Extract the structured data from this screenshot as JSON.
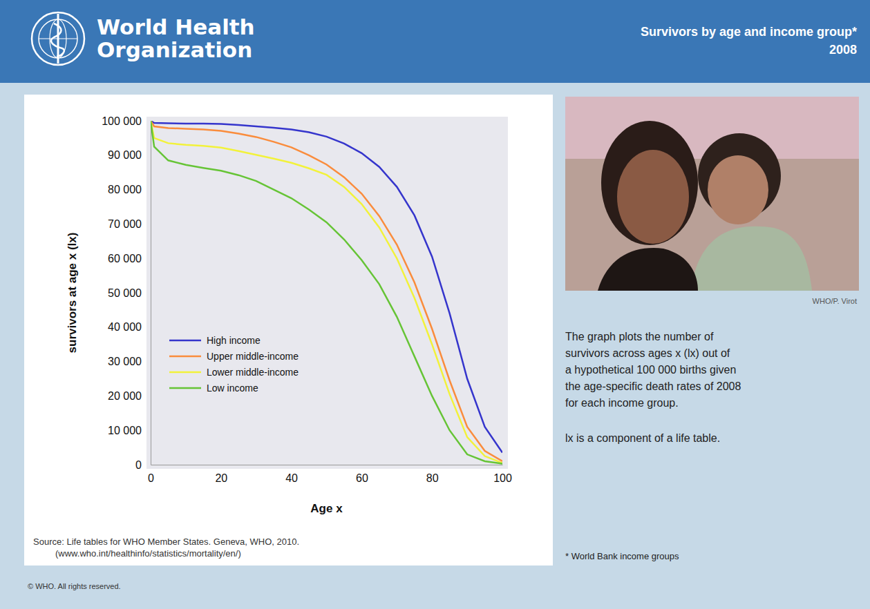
{
  "header": {
    "organization": [
      "World Health",
      "Organization"
    ],
    "title": "Survivors by age and income group*",
    "year": "2008"
  },
  "photo_credit": "WHO/P. Virot",
  "description": [
    "The graph plots the number of",
    "survivors across ages x (lx) out of",
    "a hypothetical 100 000 births given",
    "the age-specific death rates of 2008",
    "for each income group."
  ],
  "note": "lx is a component of a life table.",
  "footnote": "* World Bank income groups",
  "source": [
    "Source: Life tables for WHO Member States. Geneva, WHO, 2010.",
    "(www.who.int/healthinfo/statistics/mortality/en/)"
  ],
  "copyright": "© WHO. All rights reserved.",
  "chart_data": {
    "type": "line",
    "x_label": "Age x",
    "y_label": "survivors at age x (lx)",
    "x": [
      0,
      1,
      5,
      10,
      15,
      20,
      25,
      30,
      35,
      40,
      45,
      50,
      55,
      60,
      65,
      70,
      75,
      80,
      85,
      90,
      95,
      100
    ],
    "xlim": [
      0,
      100
    ],
    "xticks": [
      0,
      20,
      40,
      60,
      80,
      100
    ],
    "ylim": [
      0,
      100000
    ],
    "yticks": [
      0,
      {
        "value": 10000,
        "label": "10 000"
      },
      {
        "value": 20000,
        "label": "20 000"
      },
      {
        "value": 30000,
        "label": "30 000"
      },
      {
        "value": 40000,
        "label": "40 000"
      },
      {
        "value": 50000,
        "label": "50 000"
      },
      {
        "value": 60000,
        "label": "60 000"
      },
      {
        "value": 70000,
        "label": "70 000"
      },
      {
        "value": 80000,
        "label": "80 000"
      },
      {
        "value": 90000,
        "label": "90 000"
      },
      {
        "value": 100000,
        "label": "100 000"
      }
    ],
    "grid": false,
    "legend": "lower left",
    "series": [
      {
        "name": "High income",
        "color": "#3535cc",
        "values": [
          100000,
          99400,
          99300,
          99200,
          99200,
          99100,
          98800,
          98400,
          98000,
          97500,
          96700,
          95400,
          93400,
          90600,
          86600,
          80800,
          72500,
          60500,
          44000,
          25000,
          11000,
          3500
        ]
      },
      {
        "name": "Upper middle-income",
        "color": "#fa8c3c",
        "values": [
          100000,
          98400,
          97900,
          97700,
          97500,
          97100,
          96300,
          95300,
          93900,
          92300,
          90000,
          87300,
          83600,
          78800,
          72300,
          64000,
          53000,
          39500,
          24500,
          11000,
          4000,
          1000
        ]
      },
      {
        "name": "Lower middle-income",
        "color": "#f2f23a",
        "values": [
          100000,
          95000,
          93500,
          93000,
          92700,
          92200,
          91200,
          90100,
          89000,
          87800,
          86200,
          84300,
          80800,
          75800,
          69000,
          60000,
          48500,
          35000,
          20500,
          8000,
          2500,
          500
        ]
      },
      {
        "name": "Low income",
        "color": "#66c436",
        "values": [
          100000,
          92500,
          88500,
          87200,
          86300,
          85500,
          84200,
          82500,
          80000,
          77500,
          74200,
          70500,
          65500,
          59500,
          52500,
          43000,
          31500,
          20000,
          10000,
          3000,
          1000,
          300
        ]
      }
    ]
  }
}
